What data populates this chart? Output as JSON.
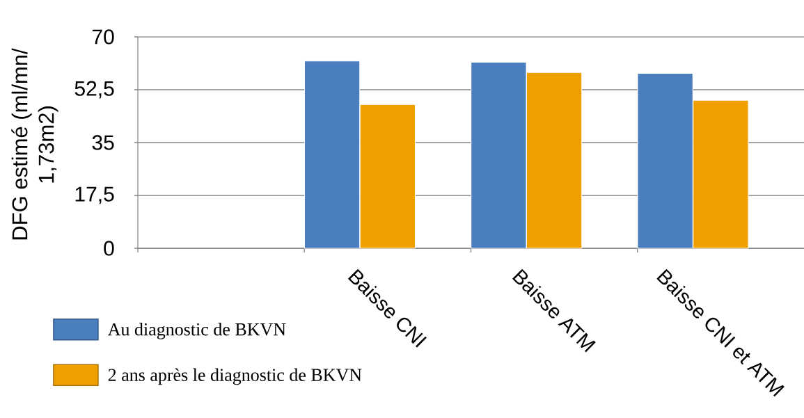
{
  "chart_data": {
    "type": "bar",
    "ylabel": "DFG estimé (ml/mn/ 1,73m2)",
    "categories": [
      null,
      "Baisse CNI",
      "Baisse ATM",
      "Baisse CNI et ATM"
    ],
    "series": [
      {
        "name": "Au diagnostic de BKVN",
        "color": "#4a7ebf",
        "values": [
          null,
          62,
          61.6,
          57.9
        ]
      },
      {
        "name": "2 ans après le diagnostic de BKVN",
        "color": "#efa000",
        "values": [
          null,
          47.6,
          58.2,
          49
        ]
      }
    ],
    "ylim": [
      0,
      70
    ],
    "yticks": [
      0,
      {
        "value": 17.5,
        "label": "17,5"
      },
      35,
      {
        "value": 52.5,
        "label": "52,5"
      },
      70
    ],
    "grid": "y",
    "legend": "bottom left"
  }
}
